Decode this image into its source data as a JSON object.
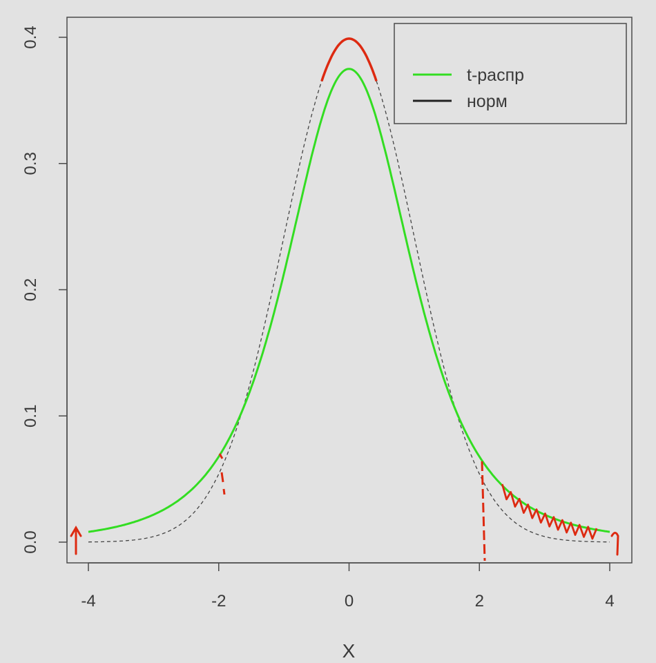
{
  "chart_data": {
    "type": "line",
    "title": "",
    "xlabel": "X",
    "ylabel": "",
    "xlim": [
      -4.2,
      4.2
    ],
    "ylim": [
      -0.015,
      0.41
    ],
    "x_ticks": [
      -4,
      -2,
      0,
      2,
      4
    ],
    "x_tick_labels": [
      "-4",
      "-2",
      "0",
      "2",
      "4"
    ],
    "y_ticks": [
      0.0,
      0.1,
      0.2,
      0.3,
      0.4
    ],
    "y_tick_labels": [
      "0.0",
      "0.1",
      "0.2",
      "0.3",
      "0.4"
    ],
    "grid": false,
    "legend": {
      "position": "top-right",
      "entries": [
        {
          "label": "t-распр",
          "color": "#33dd22"
        },
        {
          "label": "норм",
          "color": "#222222"
        }
      ]
    },
    "series": [
      {
        "name": "t-распр",
        "color": "#33dd22",
        "style": "solid",
        "x": [
          -4,
          -3.5,
          -3,
          -2.5,
          -2,
          -1.5,
          -1,
          -0.5,
          0,
          0.5,
          1,
          1.5,
          2,
          2.5,
          3,
          3.5,
          4
        ],
        "y": [
          0.007,
          0.011,
          0.018,
          0.031,
          0.068,
          0.124,
          0.202,
          0.311,
          0.375,
          0.311,
          0.202,
          0.124,
          0.068,
          0.031,
          0.018,
          0.011,
          0.007
        ]
      },
      {
        "name": "норм",
        "color": "#444444",
        "style": "dashed",
        "x": [
          -4,
          -3.5,
          -3,
          -2.5,
          -2,
          -1.5,
          -1,
          -0.5,
          0,
          0.5,
          1,
          1.5,
          2,
          2.5,
          3,
          3.5,
          4
        ],
        "y": [
          0.0001,
          0.0009,
          0.0044,
          0.0175,
          0.054,
          0.1295,
          0.242,
          0.352,
          0.399,
          0.352,
          0.242,
          0.1295,
          0.054,
          0.0175,
          0.0044,
          0.0009,
          0.0001
        ]
      }
    ],
    "annotation_color": "#dd2a11"
  }
}
